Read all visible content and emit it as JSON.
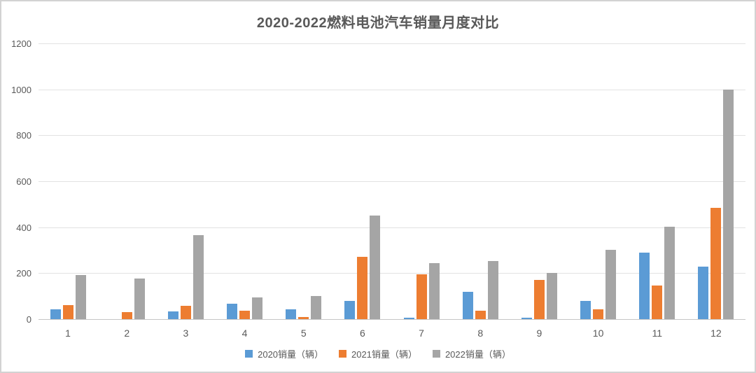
{
  "chart_data": {
    "type": "bar",
    "title": "2020-2022燃料电池汽车销量月度对比",
    "xlabel": "",
    "ylabel": "",
    "categories": [
      "1",
      "2",
      "3",
      "4",
      "5",
      "6",
      "7",
      "8",
      "9",
      "10",
      "11",
      "12"
    ],
    "series": [
      {
        "name": "2020销量（辆）",
        "color": "#5B9BD5",
        "values": [
          44,
          0,
          35,
          68,
          42,
          78,
          6,
          118,
          7,
          78,
          288,
          227
        ]
      },
      {
        "name": "2021销量（辆）",
        "color": "#ED7D31",
        "values": [
          62,
          30,
          58,
          36,
          9,
          270,
          195,
          36,
          172,
          42,
          145,
          485
        ]
      },
      {
        "name": "2022销量（辆）",
        "color": "#A5A5A5",
        "values": [
          191,
          177,
          365,
          93,
          102,
          452,
          244,
          253,
          200,
          301,
          402,
          1000
        ]
      }
    ],
    "ylim": [
      0,
      1200
    ],
    "yticks": [
      0,
      200,
      400,
      600,
      800,
      1000,
      1200
    ],
    "grid": true,
    "legend_position": "bottom"
  },
  "colors": {
    "title_text": "#595959",
    "axis_text": "#595959",
    "gridline": "#e2e2e2",
    "axis_line": "#c6c6c6",
    "background": "#ffffff",
    "frame_border": "#d2d2d2"
  }
}
